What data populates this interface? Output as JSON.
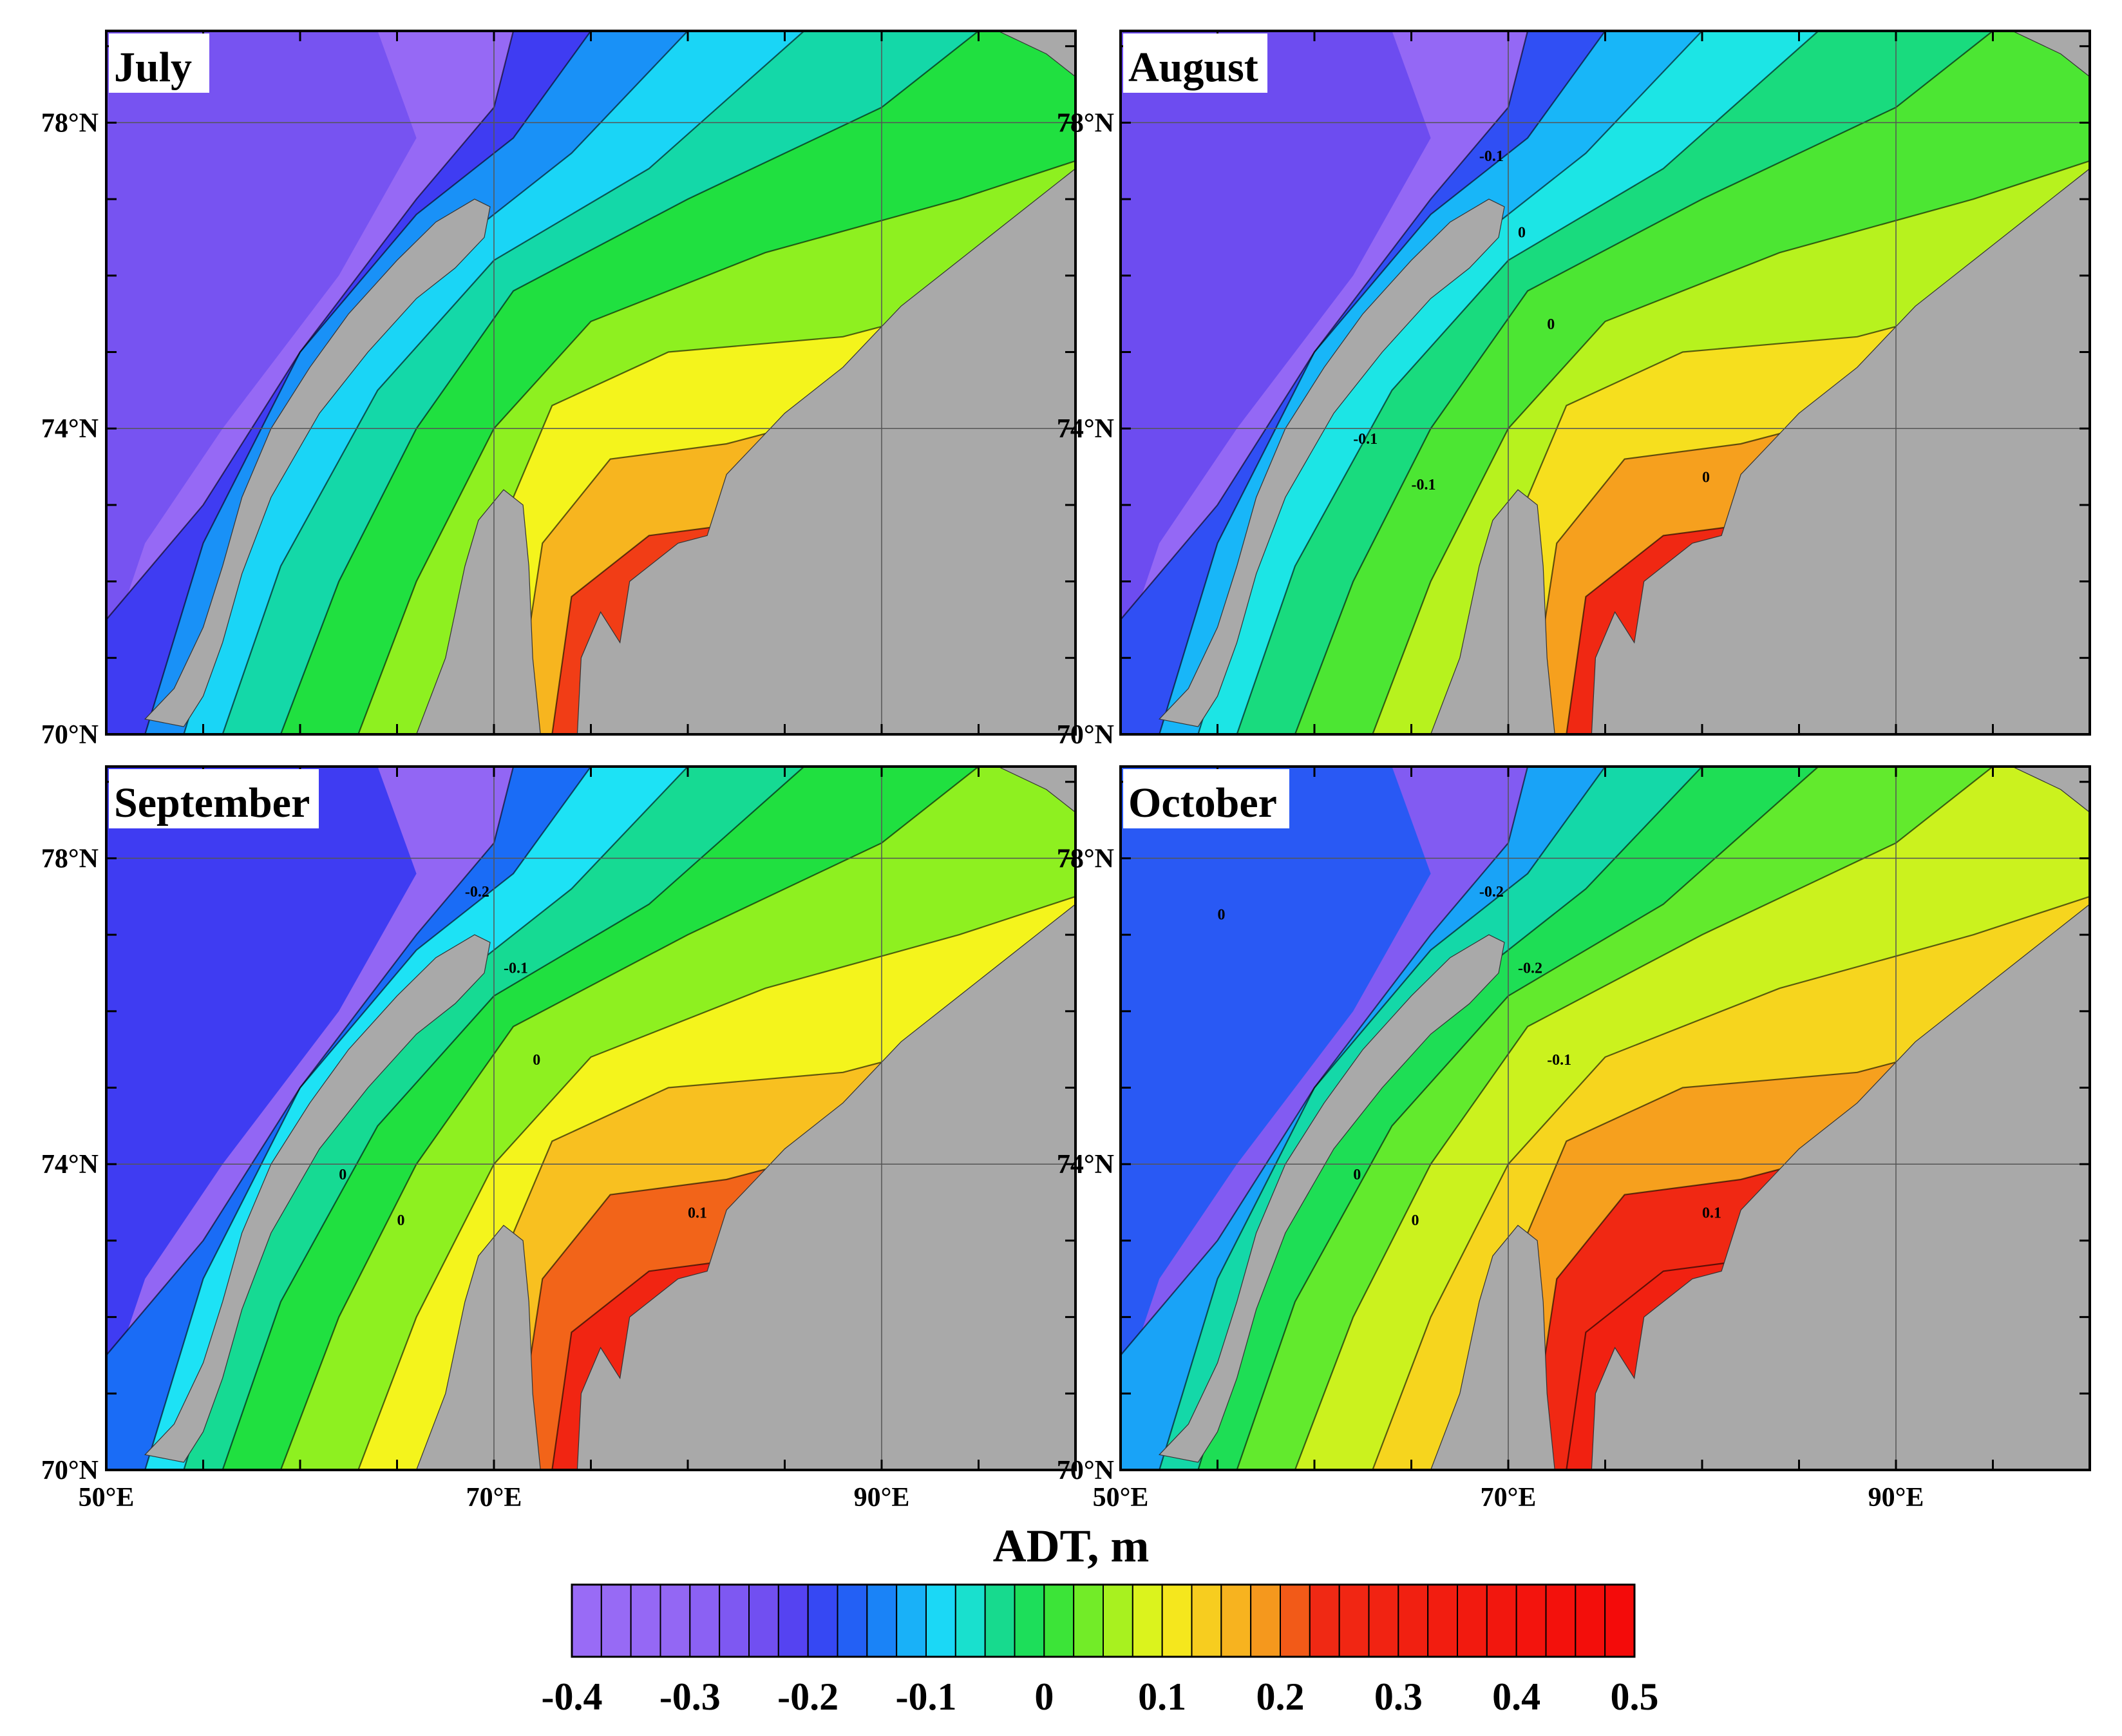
{
  "figure": {
    "colorbar_title": "ADT, m",
    "colorbar_ticks": [
      "-0.4",
      "-0.3",
      "-0.2",
      "-0.1",
      "0",
      "0.1",
      "0.2",
      "0.3",
      "0.4",
      "0.5"
    ],
    "colorbar_range": [
      -0.4,
      0.5
    ],
    "colorbar_step": 0.025,
    "lat_labels": [
      "78°N",
      "74°N",
      "70°N"
    ],
    "lon_labels": [
      "50°E",
      "70°E",
      "90°E"
    ],
    "land_color": "#a9a9a9"
  },
  "panels": [
    {
      "title": "July",
      "contour_labels": []
    },
    {
      "title": "August",
      "contour_labels": [
        "-0.1",
        "0",
        "0",
        "-0.1",
        "-0.1",
        "0"
      ]
    },
    {
      "title": "September",
      "contour_labels": [
        "-0.2",
        "-0.1",
        "0",
        "0",
        "0",
        "0.1"
      ]
    },
    {
      "title": "October",
      "contour_labels": [
        "-0.2",
        "-0.2",
        "-0.1",
        "0",
        "0",
        "0.1",
        "0"
      ]
    }
  ],
  "colors": {
    "stops": [
      [
        -0.4,
        "#9a6cf6"
      ],
      [
        -0.3,
        "#9266f4"
      ],
      [
        -0.225,
        "#6a4af0"
      ],
      [
        -0.2,
        "#3f3cf2"
      ],
      [
        -0.15,
        "#1a6cf6"
      ],
      [
        -0.1,
        "#18c8f8"
      ],
      [
        -0.075,
        "#1ee8f4"
      ],
      [
        -0.05,
        "#14d8a8"
      ],
      [
        0.0,
        "#20e040"
      ],
      [
        0.05,
        "#8ef020"
      ],
      [
        0.1,
        "#f4f41c"
      ],
      [
        0.15,
        "#f8c020"
      ],
      [
        0.2,
        "#f48a1c"
      ],
      [
        0.225,
        "#f02a14"
      ],
      [
        0.5,
        "#f40a0a"
      ]
    ]
  }
}
